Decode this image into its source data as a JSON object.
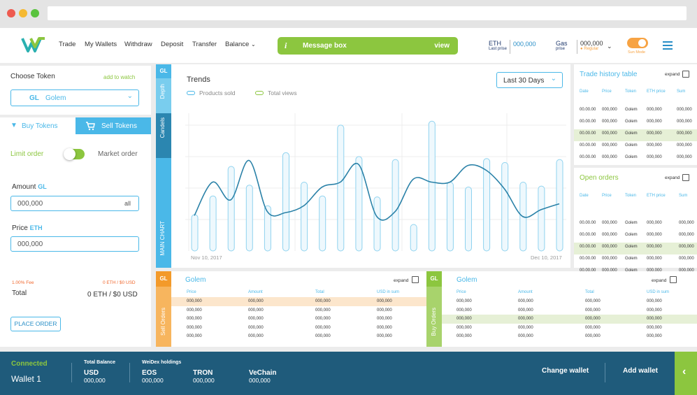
{
  "header": {
    "nav": [
      "Trade",
      "My Wallets",
      "Withdraw",
      "Deposit",
      "Transfer",
      "Balance"
    ],
    "message": {
      "icon": "i",
      "text": "Message box",
      "action": "view"
    },
    "eth": {
      "label": "ETH",
      "sub": "Last prise",
      "value": "000,000"
    },
    "gas": {
      "label": "Gas",
      "sub": "prise",
      "value": "000,000",
      "status": "Regular"
    },
    "mode_label": "Sun Mode"
  },
  "left": {
    "title": "Choose Token",
    "watch": "add to watch",
    "token_code": "GL",
    "token_name": "Golem",
    "buy_tab": "Buy Tokens",
    "sell_tab": "Sell Tokens",
    "limit": "Limit order",
    "market": "Market order",
    "amount_label": "Amount",
    "amount_unit": "GL",
    "amount_value": "000,000",
    "amount_all": "all",
    "price_label": "Price",
    "price_unit": "ETH",
    "price_value": "000,000",
    "fee": "1.00% Fee",
    "fee_value": "0 ETH  / $0 USD",
    "total": "Total",
    "total_value": "0 ETH  / $0 USD",
    "place": "PLACE ORDER"
  },
  "chart_tabs": {
    "gl": "GL",
    "depth": "Depth",
    "candels": "Candels",
    "main": "MAIN CHART"
  },
  "trends": {
    "title": "Trends",
    "legend1": "Products sold",
    "legend2": "Total views",
    "range": "Last 30 Days",
    "date_start": "Nov 10, 2017",
    "date_end": "Dec 10, 2017"
  },
  "chart_data": {
    "type": "bar",
    "series": [
      {
        "name": "Products sold",
        "values": [
          37,
          56,
          86,
          67,
          46,
          100,
          70,
          56,
          128,
          96,
          55,
          93,
          27,
          132,
          70,
          65,
          94,
          90,
          70,
          66,
          93
        ]
      },
      {
        "name": "Total views",
        "values": [
          36,
          70,
          52,
          92,
          40,
          39,
          46,
          65,
          70,
          88,
          35,
          40,
          73,
          70,
          70,
          87,
          82,
          63,
          35,
          42,
          48
        ]
      }
    ],
    "ylim": [
      0,
      140
    ]
  },
  "trade_history": {
    "title": "Trade history table",
    "expand": "expand",
    "headers": [
      "Date",
      "Price",
      "Token",
      "ETH price",
      "Sum"
    ],
    "rows": [
      [
        "00.00.00",
        "000,000",
        "Golem",
        "000,000",
        "000,000"
      ],
      [
        "00.00.00",
        "000,000",
        "Golem",
        "000,000",
        "000,000"
      ],
      [
        "00.00.00",
        "000,000",
        "Golem",
        "000,000",
        "000,000"
      ],
      [
        "00.00.00",
        "000,000",
        "Golem",
        "000,000",
        "000,000"
      ],
      [
        "00.00.00",
        "000,000",
        "Golem",
        "000,000",
        "000,000"
      ]
    ]
  },
  "open_orders": {
    "title": "Open orders",
    "expand": "expand",
    "headers": [
      "Date",
      "Price",
      "Token",
      "ETH price",
      "Sum"
    ],
    "rows": [
      [
        "00.00.00",
        "000,000",
        "Golem",
        "000,000",
        "000,000"
      ],
      [
        "00.00.00",
        "000,000",
        "Golem",
        "000,000",
        "000,000"
      ],
      [
        "00.00.00",
        "000,000",
        "Golem",
        "000,000",
        "000,000"
      ],
      [
        "00.00.00",
        "000,000",
        "Golem",
        "000,000",
        "000,000"
      ],
      [
        "00.00.00",
        "000,000",
        "Golem",
        "000,000",
        "000,000"
      ]
    ]
  },
  "sell_orders": {
    "tab": "GL",
    "vlabel": "Sell Orders",
    "title": "Golem",
    "expand": "expand",
    "headers": [
      "Price",
      "Amount",
      "Total",
      "USD in sum"
    ],
    "rows": [
      [
        "000,000",
        "000,000",
        "000,000",
        "000,000"
      ],
      [
        "000,000",
        "000,000",
        "000,000",
        "000,000"
      ],
      [
        "000,000",
        "000,000",
        "000,000",
        "000,000"
      ],
      [
        "000,000",
        "000,000",
        "000,000",
        "000,000"
      ],
      [
        "000,000",
        "000,000",
        "000,000",
        "000,000"
      ]
    ]
  },
  "buy_orders": {
    "tab": "GL",
    "vlabel": "Buy Orders",
    "title": "Golem",
    "expand": "expand",
    "headers": [
      "Price",
      "Amount",
      "Total",
      "USD in sum"
    ],
    "rows": [
      [
        "000,000",
        "000,000",
        "000,000",
        "000,000"
      ],
      [
        "000,000",
        "000,000",
        "000,000",
        "000,000"
      ],
      [
        "000,000",
        "000,000",
        "000,000",
        "000,000"
      ],
      [
        "000,000",
        "000,000",
        "000,000",
        "000,000"
      ],
      [
        "000,000",
        "000,000",
        "000,000",
        "000,000"
      ]
    ]
  },
  "footer": {
    "status": "Connected",
    "wallet": "Wallet 1",
    "total_balance": "Total Balance",
    "weidex": "WeiDex holdings",
    "holdings": [
      {
        "name": "USD",
        "value": "000,000"
      },
      {
        "name": "EOS",
        "value": "000,000"
      },
      {
        "name": "TRON",
        "value": "000,000"
      },
      {
        "name": "VeChain",
        "value": "000,000"
      }
    ],
    "change": "Change wallet",
    "add": "Add wallet"
  },
  "colors": {
    "accent_blue": "#4ab8e8",
    "accent_green": "#8cc63f",
    "accent_orange": "#f7a343",
    "footer": "#1f5b7b"
  }
}
